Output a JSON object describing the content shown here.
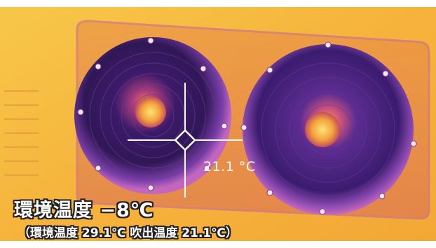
{
  "image": {
    "kind": "thermal-camera-photo",
    "subject": "outdoor air-conditioner unit with two fans",
    "palette": {
      "hot": "#ffd84a",
      "warm": "#f59a2c",
      "mid": "#c2427c",
      "cool": "#5b2a8e",
      "cold": "#241040"
    }
  },
  "readout": {
    "value": "21.1 °C"
  },
  "caption": {
    "main": "環境温度 −8℃",
    "sub": "（環境温度 29.1℃ 吹出温度 21.1℃）"
  }
}
